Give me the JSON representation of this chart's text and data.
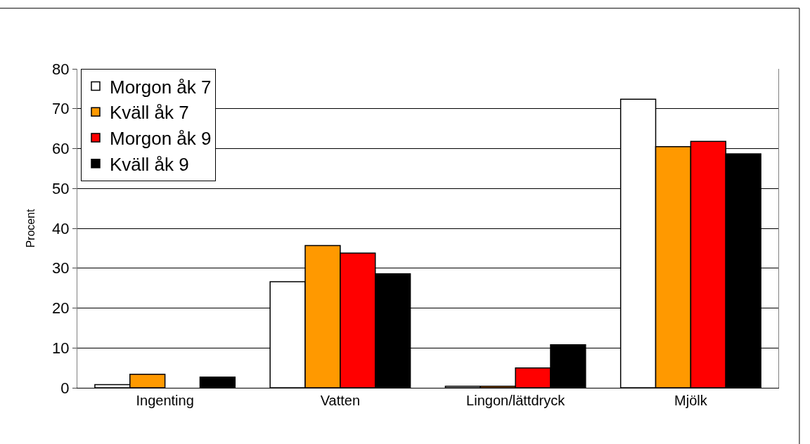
{
  "chart_data": {
    "type": "bar",
    "ylabel": "Procent",
    "categories": [
      "Ingenting",
      "Vatten",
      "Lingon/lättdryck",
      "Mjölk"
    ],
    "series": [
      {
        "name": "Morgon åk 7",
        "color": "#ffffff",
        "values": [
          0.8,
          26.6,
          0.4,
          72.4
        ]
      },
      {
        "name": "Kväll åk 7",
        "color": "#ff9900",
        "values": [
          3.4,
          35.7,
          0.4,
          60.5
        ]
      },
      {
        "name": "Morgon åk 9",
        "color": "#ff0000",
        "values": [
          null,
          33.8,
          5.0,
          61.8
        ]
      },
      {
        "name": "Kväll åk 9",
        "color": "#000000",
        "values": [
          2.7,
          28.6,
          10.8,
          58.7
        ]
      }
    ],
    "ylim": [
      0,
      80
    ],
    "yticks": [
      0,
      10,
      20,
      30,
      40,
      50,
      60,
      70,
      80
    ],
    "grid": "y",
    "legend": "top left"
  }
}
